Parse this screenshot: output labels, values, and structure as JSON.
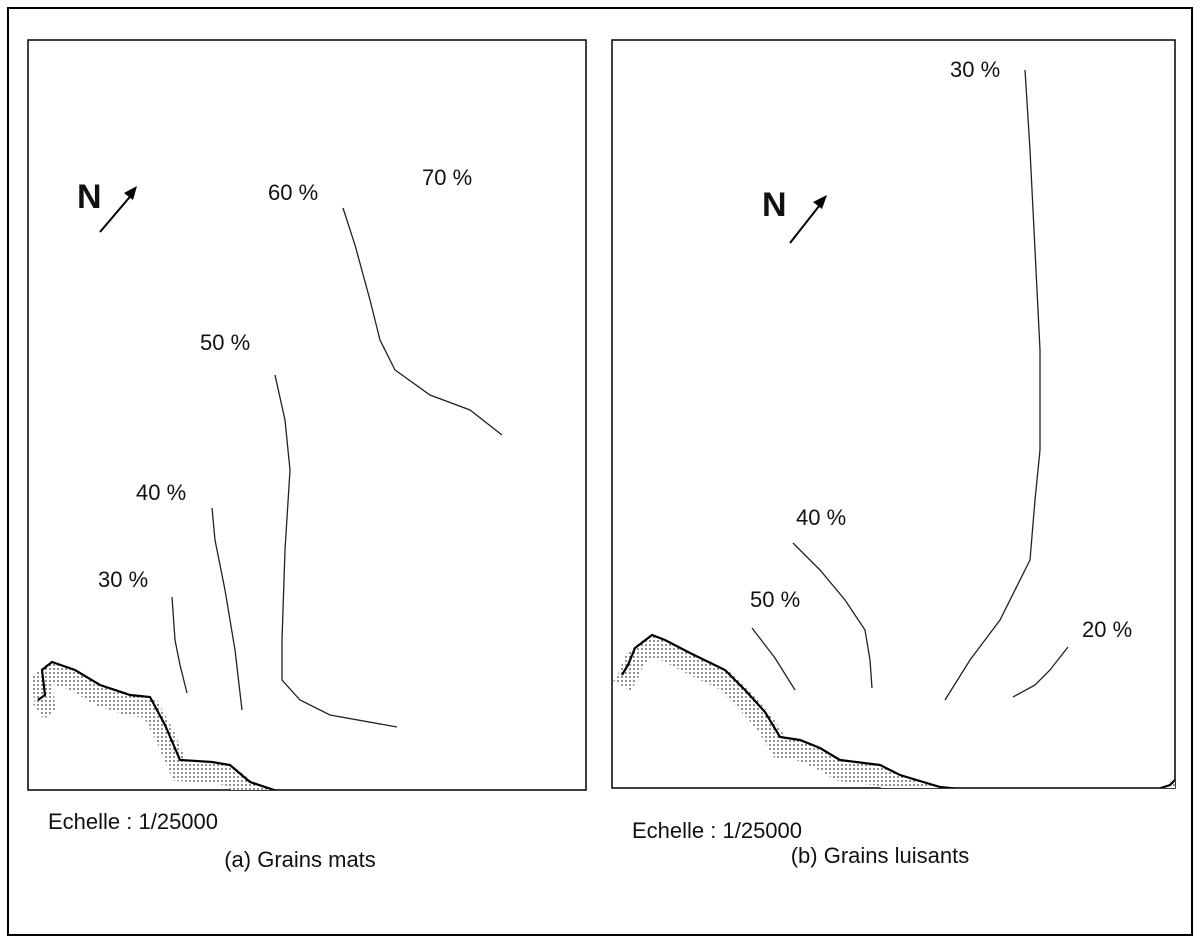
{
  "panels": [
    {
      "north": "N",
      "contours": [
        "70 %",
        "60 %",
        "50 %",
        "40 %",
        "30 %"
      ],
      "scale": "Echelle : 1/25000",
      "caption": "(a) Grains mats"
    },
    {
      "north": "N",
      "contours": [
        "30 %",
        "40 %",
        "50 %",
        "20 %"
      ],
      "scale": "Echelle : 1/25000",
      "caption": "(b) Grains luisants"
    }
  ]
}
